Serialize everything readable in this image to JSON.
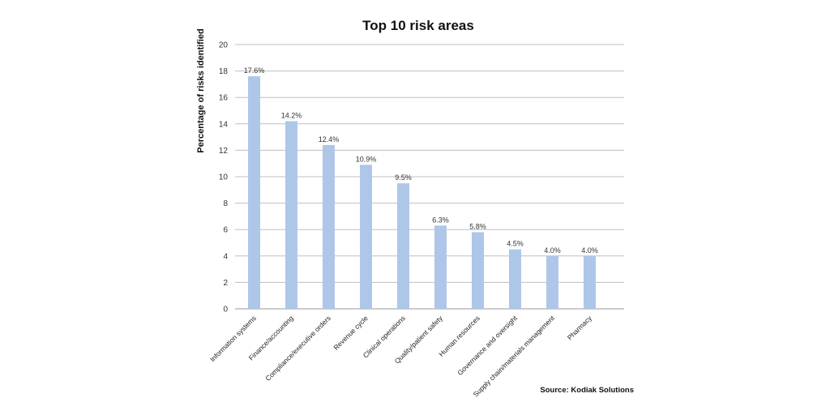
{
  "chart_data": {
    "type": "bar",
    "title": "Top 10 risk areas",
    "xlabel": "",
    "ylabel": "Percentage of risks identified",
    "ylim": [
      0,
      20
    ],
    "yticks": [
      0,
      2,
      4,
      6,
      8,
      10,
      12,
      14,
      16,
      18,
      20
    ],
    "grid": true,
    "legend": "none",
    "bar_color": "#aec7e8",
    "categories": [
      "Information systems",
      "Finance/accounting",
      "Compliance/executive orders",
      "Revenue cycle",
      "Clinical operations",
      "Quality/patient safety",
      "Human resources",
      "Governance and oversight",
      "Supply chain/materials management",
      "Pharmacy"
    ],
    "values": [
      17.6,
      14.2,
      12.4,
      10.9,
      9.5,
      6.3,
      5.8,
      4.5,
      4.0,
      4.0
    ],
    "value_labels": [
      "17.6%",
      "14.2%",
      "12.4%",
      "10.9%",
      "9.5%",
      "6.3%",
      "5.8%",
      "4.5%",
      "4.0%",
      "4.0%"
    ],
    "source": "Source: Kodiak Solutions"
  }
}
